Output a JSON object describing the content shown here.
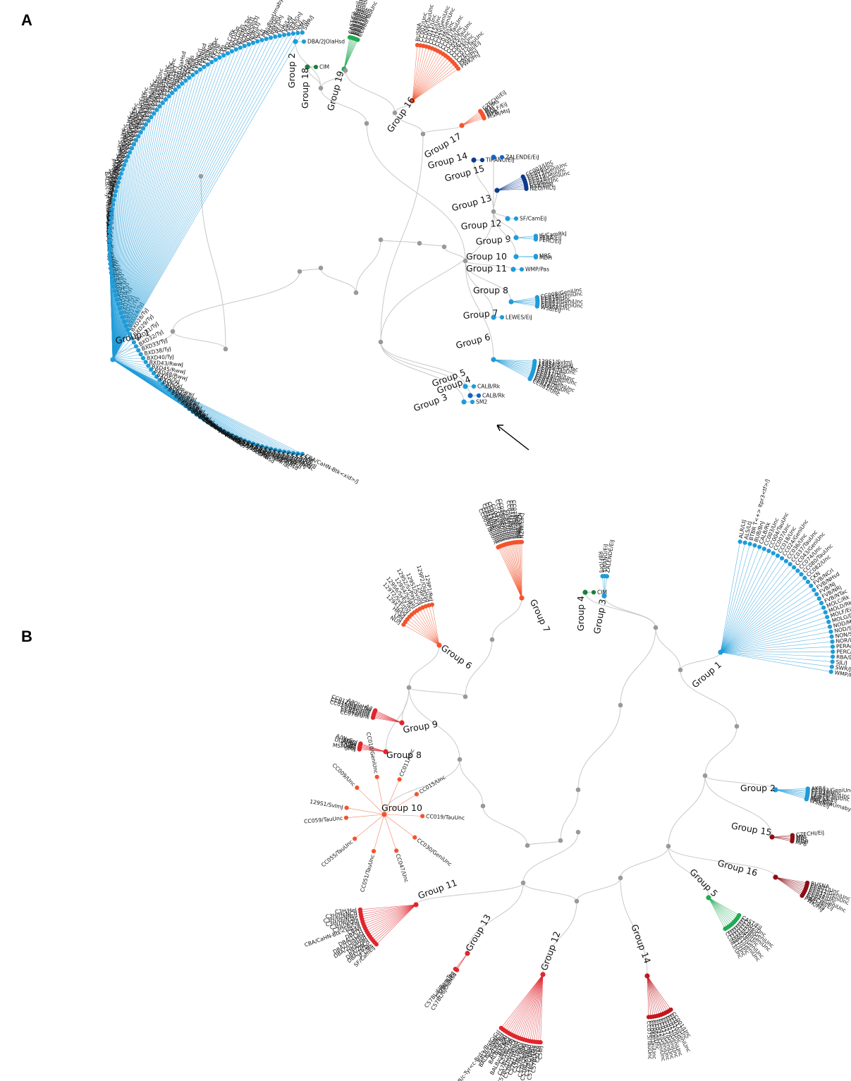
{
  "panels": [
    {
      "letter": "A",
      "groups": [
        {
          "label": "Group 1",
          "color": "#1f9bd8",
          "leaves": [
            "CBA/CaHN-Btk<xid>/J",
            "C58/J",
            "C57L/J",
            "C57BR/cdJ",
            "C57BLKS/J",
            "C57BL/6NTac",
            "C57BL/6NRJ",
            "C57BL/6N",
            "C57BL/6NHsd",
            "C57BL/6NCrl",
            "C57BL/6JOlaHsd",
            "C57BL/6JEiJ",
            "C57BL/6JBomTac",
            "C57BL/6J",
            "C57BL/6ByJ",
            "C57BL/10SnJ",
            "C57BL/10ScNHsd",
            "C57BL/10ScCr",
            "C57BL/10J",
            "C3HeB/FeJ",
            "C3H/HeOuJ",
            "C3H/HeNTac",
            "C3H/HeNHsd",
            "C3H/HeNCrl",
            "C3H/HeJ",
            "BXD98/RwwJ",
            "BXD90/RwwJ",
            "BXD89/RwwJ",
            "BXD87/RwwJ",
            "BXD83/RwwJ",
            "BXD75/RwwJ",
            "BXD73/RwwJ",
            "BXD69/RwwJ",
            "BXD68/RwwJ",
            "BXD66/RwwJ",
            "BXD62/RwwJ",
            "BXD60/RwwJ",
            "BXD6/TyJ",
            "BXD5/TyJ",
            "BXD48/RwwJ",
            "BXD45/RwwJ",
            "BXD43/RwwJ",
            "BXD40/TyJ",
            "BXD38/TyJ",
            "BXD33/TyJ",
            "BXD32/TyJ",
            "BXD31/TyJ",
            "BXD29/TyJ",
            "BXD28/TyJ",
            "BXD24/TyJ",
            "BXD21/TyJ",
            "BXD2/TyJ",
            "BXD18/TyJ",
            "BXD16/TyJ",
            "BXD15/TyJ",
            "BXD14/TyJ",
            "BXD13/TyJ",
            "BXD12/TyJ",
            "BXD11/TyJ",
            "BXD1/TyJ",
            "BUB/BnJ",
            "BTBR T<+> Itpr3<tf>/J",
            "BPN/3J",
            "BALB/cJBomTac",
            "BALB/cByJ",
            "BALB/cAnNHsd",
            "BALB/cAnNCrl",
            "BALB/c-Tyr<c-Brd>/BrdCrCrl",
            "ALR/LtJ",
            "AKR/J",
            "A/WySnJ",
            "A/JOlaHsd",
            "A/J",
            "129X1/SvJ",
            "129T2/SvEmsJ",
            "129S2/SvPasCrl",
            "129S2/SvHsd",
            "129P3/J",
            "129P2/OlaHsd",
            "129P1/ReJ",
            "DBA/2NCrl",
            "CC001/Unc",
            "CC005/TauUnc",
            "CC007/Unc",
            "CC010/GeniUnc",
            "CC012/GeniUnc",
            "CC018/Unc",
            "CC022/GeniUnc",
            "CC023/GeniUnc",
            "CC024/GeniUnc",
            "CC031/GeniUnc",
            "CC036/Unc",
            "CC040/TauUnc",
            "CC042/GeniUnc",
            "CC043/GeniUnc",
            "CC047/Unc",
            "CC049/TauUnc",
            "CC051/TauUnc",
            "CC059/TauUnc",
            "CC061/GeniUnc",
            "CC065/Unc",
            "CC068/TauUnc",
            "CC072/TauUnc",
            "CC079/TauUnc",
            "DBA/1LacJ",
            "DBA/1J",
            "DBA/1OlaHsd",
            "DBA/2J",
            "DBA/2JRj",
            "DDK/Pas",
            "FVB/N",
            "FVB/NCrl",
            "FVB/NHsd",
            "FVB/NJ",
            "FVB/NRj",
            "FVB/NTac",
            "KK/HlJ",
            "LG/J",
            "LP/J",
            "MOLC/Rk",
            "MOLD/Dn",
            "MOLG/Dn",
            "NOD/MrkTac",
            "NOD/ShiLtJ",
            "NON/ShiLtJ",
            "NOR/LtJ",
            "NU/J",
            "PL/J",
            "PN/uBswUmabyJ",
            "RBA/DnJ",
            "RBF/DnJ",
            "RF/J",
            "RHJ/LeJ",
            "RIIIS/J",
            "SEA/GnJ",
            "SJL/J",
            "SM/J",
            "SWR/J"
          ]
        },
        {
          "label": "Group 2",
          "color": "#1f9bd8",
          "leaves": [
            "DBA/2JOlaHsd"
          ]
        },
        {
          "label": "Group 3",
          "color": "#1f9bd8",
          "leaves": [
            "SM2"
          ]
        },
        {
          "label": "Group 4",
          "color": "#1565c0",
          "leaves": [
            "CALB/Rk"
          ]
        },
        {
          "label": "Group 5",
          "color": "#1f9bd8",
          "leaves": [
            "CALB/Rk"
          ]
        },
        {
          "label": "Group 6",
          "color": "#1f9bd8",
          "leaves": [
            "129S1/SvImJ",
            "129S4/SvJaeJ",
            "129S6/SvEvTac",
            "CC004/TauUnc",
            "CC017/Unc",
            "CC037/TauUnc",
            "CC038/GeniUnc",
            "CC044/Unc",
            "CC058/GeniUnc",
            "CC071/TauUnc",
            "CC076/Unc",
            "CC081/Unc"
          ]
        },
        {
          "label": "Group 7",
          "color": "#1f9bd8",
          "leaves": [
            "LEWES/EiJ"
          ]
        },
        {
          "label": "Group 8",
          "color": "#1f9bd8",
          "leaves": [
            "CC008/GeniUnc",
            "CC016/GeniUnc",
            "CC029/Unc",
            "CC045/GeniUnc",
            "CC052/GeniUnc",
            "CC083/Unc",
            "WSB/EiJ"
          ]
        },
        {
          "label": "Group 9",
          "color": "#1f9bd8",
          "leaves": [
            "IS/CamRkJ",
            "PERA/EiJ",
            "PERC/EiJ"
          ]
        },
        {
          "label": "Group 10",
          "color": "#1f9bd8",
          "leaves": [
            "MBS",
            "MDH"
          ]
        },
        {
          "label": "Group 11",
          "color": "#1f9bd8",
          "leaves": [
            "WMP/Pas"
          ]
        },
        {
          "label": "Group 12",
          "color": "#1f9bd8",
          "leaves": [
            "SF/CamEiJ"
          ]
        },
        {
          "label": "Group 13",
          "color": "#0d3b8c",
          "leaves": [
            "CC003/Unc",
            "CC009/Unc",
            "CC013/GeniUnc",
            "CC019/TauUnc",
            "CC028/GeniUnc",
            "CC060/Unc",
            "NZB/BlNJ",
            "NZO/HlLtJ"
          ]
        },
        {
          "label": "Group 14",
          "color": "#0d3b8c",
          "leaves": [
            "TIRANO/EiJ"
          ]
        },
        {
          "label": "Group 15",
          "color": "#1565c0",
          "leaves": [
            "ZALENDE/EiJ"
          ]
        },
        {
          "label": "Group 16",
          "color": "#f2542d",
          "leaves": [
            "BUSNA",
            "CC002/Unc",
            "CC006/TauUnc",
            "CC011/Unc",
            "CC015/Unc",
            "CC020/GeniUnc",
            "CC032/GeniUnc",
            "CC039/Unc",
            "CC041/TauUnc",
            "CC050/Unc",
            "CC055/TauUnc",
            "CC062/Unc",
            "CC074/Unc",
            "CC075/TauUnc",
            "CZECHII/EiJ",
            "PWD/PhJ",
            "PWK/PhJ"
          ]
        },
        {
          "label": "Group 17",
          "color": "#f2542d",
          "leaves": [
            "CZECHI/EiJ",
            "JF1/Ms",
            "MAI",
            "MOLF/EiJ",
            "MPB",
            "MSM/MsJ"
          ]
        },
        {
          "label": "Group 18",
          "color": "#1a7f37",
          "leaves": [
            "CIM"
          ]
        },
        {
          "label": "Group 19",
          "color": "#22aa55",
          "leaves": [
            "CAST/EiJ",
            "CC025/GeniUnc",
            "CC026/GeniUnc",
            "CC030/GeniUnc",
            "CC033/GeniUnc",
            "CC035/Unc",
            "CC057/Unc",
            "CC063/Unc",
            "CC080/TauUnc"
          ]
        }
      ]
    },
    {
      "letter": "B",
      "groups": [
        {
          "label": "Group 1",
          "color": "#1f9bd8",
          "leaves": [
            "ALR/LtJ",
            "ALS/LtJ",
            "BTBR T<+> Itpr3<tf>/J",
            "BUB/BnJ",
            "CALB/Rk",
            "CC003/Unc",
            "CC004/TauUnc",
            "CC007/Unc",
            "CC018/Unc",
            "CC024/GeniUnc",
            "CC036/Unc",
            "CC037/TauUnc",
            "CC043/GeniUnc",
            "CC074/Unc",
            "CC080/TauUnc",
            "CC082/Unc",
            "CKN",
            "FVB/NCrl",
            "FVB/NHsd",
            "FVB/NJ",
            "FVB/NRj",
            "FVB/NTac",
            "MOLC/Rk",
            "MOLD/Rk",
            "MOLF/EiJ",
            "MOLG/Dn",
            "NOD/MrkTac",
            "NOD/ShiLtJ",
            "NON/ShiLtJ",
            "NOR/LtJ",
            "PERA/EiJ",
            "PERC/EiJ",
            "RBA/DnJ",
            "SJL/J",
            "SWR/J",
            "WMP/Pas"
          ]
        },
        {
          "label": "Group 2",
          "color": "#1f9bd8",
          "leaves": [
            "AKR/J",
            "CC033/GeniUnc",
            "CC039/Unc",
            "CC040/TauUnc",
            "CC079/TauUnc",
            "LEWES/EiJ",
            "MRL/MpJ",
            "PN/uBswUmaby",
            "WSB/EiJ"
          ]
        },
        {
          "label": "Group 3",
          "color": "#1f9bd8",
          "leaves": [
            "RBF/DnJ",
            "TIRANO/EiJ",
            "ZALENDE/EiJ"
          ]
        },
        {
          "label": "Group 4",
          "color": "#1a7f37",
          "leaves": [
            "CIM"
          ]
        },
        {
          "label": "Group 5",
          "color": "#22aa55",
          "leaves": [
            "CAST/EiJ",
            "CC002/Unc",
            "CC008/GeniUnc",
            "CC038/GeniUnc",
            "CC048/Unc",
            "CC058/GeniUnc",
            "CC061/GeniUnc",
            "CC063/Unc",
            "CC081/Unc",
            "CC083/Unc"
          ]
        },
        {
          "label": "Group 6",
          "color": "#f2542d",
          "leaves": [
            "NU/J",
            "LP/J",
            "HRS/J",
            "129X1/SvJ",
            "129T2/SvEmsJ",
            "129S6/SvEvTac",
            "129S4/SvJaeJ",
            "129S2/SvPasCrl",
            "129S1/SvImJ",
            "129P3/J",
            "129P2/OlaHsd",
            "129P1/ReJ"
          ]
        },
        {
          "label": "Group 7",
          "color": "#f2542d",
          "leaves": [
            "CC005/TauUnc",
            "CC006/TauUnc",
            "CC013/GeniUnc",
            "CC025/GeniUnc",
            "CC032/GeniUnc",
            "CC041/TauUnc",
            "CC050/Unc",
            "CC052/GeniUnc",
            "CC056/GeniUnc",
            "CC057/Unc",
            "CC062/Unc",
            "CC071/TauUnc",
            "CC072/TauUnc",
            "CC078/TauUnc",
            "NZB/BlNJ",
            "NZO/HlLtJ",
            "NZW/LacJ"
          ]
        },
        {
          "label": "Group 8",
          "color": "#e0262d",
          "leaves": [
            "SM/J",
            "MSM/MsJ",
            "LG/J",
            "KK/HlJ",
            "DDK/Pas",
            "BDP/J",
            "A/WySnJ"
          ]
        },
        {
          "label": "Group 9",
          "color": "#e0262d",
          "leaves": [
            "CC076/Unc",
            "CC063/Unc",
            "CC035/Unc",
            "CC023/GeniUnc",
            "CC016/GeniUnc",
            "CC012/GeniUnc",
            "A/JOlaHsd",
            "A/J"
          ]
        },
        {
          "label": "Group 10",
          "color": "#f2542d",
          "leaves": [
            "CC059/TauUnc",
            "CC055/TauUnc",
            "CC051/TauUnc",
            "CC047/Unc",
            "CC030/GeniUnc",
            "CC019/TauUnc",
            "CC015/Unc",
            "CC011/Unc",
            "CC010/GeniUnc",
            "CC009/Unc",
            "129S1/SvImJ"
          ]
        },
        {
          "label": "Group 11",
          "color": "#e0262d",
          "leaves": [
            "SF/CamEiJ",
            "JF1/Ms",
            "DBA/2NTac",
            "DBA/2NCrl",
            "DBA/2JRj",
            "DBA/2JOlaHsd",
            "DBA/1OlaHsd",
            "DBA/1LacJ",
            "DBA/1J",
            "CBA/J",
            "CBA/CaHN-Btk<xid>/J",
            "C3HeB/FeJ",
            "C3H/HeOuJ",
            "C3H/HeNTac",
            "C3H/HeNHsd",
            "C3H/HeNCrl",
            "C3H/HeJ"
          ]
        },
        {
          "label": "Group 12",
          "color": "#e0262d",
          "leaves": [
            "C58/J",
            "C57L/J",
            "C57BLKS/J",
            "C57BL/6NTac",
            "C57BL/6NRj",
            "C57BL/6NHsd",
            "C57BL/6NCrl",
            "C57BL/6JRj",
            "C57BL/6ByJ",
            "C57BL/10SnJ",
            "C57BL/10ScSn",
            "C57BL/10ScNHsd",
            "C57BL/10ScCr",
            "C57BL/10J",
            "BALB/cJBomTac",
            "BALB/cJ",
            "BALB/cByJRj",
            "BALB/cByJ",
            "BALB/cAnNHsd",
            "BALB/cAnNCrl",
            "BALB/c-Tyr<c-Brd>/BrdCrCrl"
          ]
        },
        {
          "label": "Group 13",
          "color": "#e0262d",
          "leaves": [
            "C57BL/6JOlaHsd",
            "C57BL/6JEiJ",
            "C57BL/6JBomTac"
          ]
        },
        {
          "label": "Group 14",
          "color": "#c0181e",
          "leaves": [
            "CC001/Unc",
            "CC017/Unc",
            "CC020/GeniUnc",
            "CC021/Unc",
            "CC022/GeniUnc",
            "CC027/GeniUnc",
            "CC031/GeniUnc",
            "CC042/GeniUnc",
            "CC045/GeniUnc",
            "CC060/Unc",
            "CC068/TauUnc",
            "CC075/TauUnc"
          ]
        },
        {
          "label": "Group 15",
          "color": "#8b0e14",
          "leaves": [
            "CZECHI/EiJ",
            "MAI",
            "MBS",
            "MDH",
            "MPB"
          ]
        },
        {
          "label": "Group 16",
          "color": "#8b0e14",
          "leaves": [
            "BUSNA",
            "CC001/Unc",
            "CC022/GeniUnc",
            "CC032/GeniUnc",
            "CC044/Unc",
            "CC045/GeniUnc",
            "CZECHII/EiJ",
            "PWD/PhJ",
            "PWK/PhJ"
          ]
        }
      ]
    }
  ],
  "colors": {
    "branch": "#c8c8c8",
    "internal_node": "#999999",
    "arrow": "#000000"
  }
}
